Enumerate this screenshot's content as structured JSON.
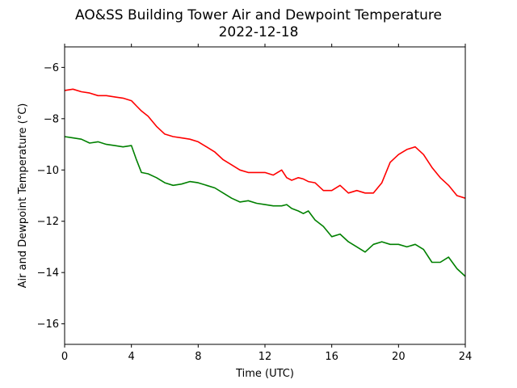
{
  "chart_data": {
    "type": "line",
    "title": "AO&SS Building Tower Air and Dewpoint Temperature",
    "subtitle": "2022-12-18",
    "xlabel": "Time (UTC)",
    "ylabel": "Air and Dewpoint Temperature (°C)",
    "xlim": [
      0,
      24
    ],
    "ylim": [
      -16.8,
      -5.2
    ],
    "xticks": [
      0,
      4,
      8,
      12,
      16,
      20,
      24
    ],
    "xtick_labels": [
      "0",
      "4",
      "8",
      "12",
      "16",
      "20",
      "24"
    ],
    "yticks": [
      -16,
      -14,
      -12,
      -10,
      -8,
      -6
    ],
    "ytick_labels": [
      "−16",
      "−14",
      "−12",
      "−10",
      "−8",
      "−6"
    ],
    "grid": false,
    "series": [
      {
        "color": "#ff0000",
        "x": [
          0,
          0.5,
          1,
          1.5,
          2,
          2.5,
          3,
          3.5,
          4,
          4.3,
          4.6,
          5,
          5.5,
          6,
          6.5,
          7,
          7.5,
          8,
          8.5,
          9,
          9.5,
          10,
          10.5,
          11,
          11.5,
          12,
          12.5,
          13,
          13.3,
          13.6,
          14,
          14.3,
          14.6,
          15,
          15.5,
          16,
          16.5,
          17,
          17.5,
          18,
          18.5,
          19,
          19.5,
          20,
          20.5,
          21,
          21.5,
          22,
          22.5,
          23,
          23.5,
          24
        ],
        "values": [
          -6.9,
          -6.85,
          -6.95,
          -7.0,
          -7.1,
          -7.1,
          -7.15,
          -7.2,
          -7.3,
          -7.5,
          -7.7,
          -7.9,
          -8.3,
          -8.6,
          -8.7,
          -8.75,
          -8.8,
          -8.9,
          -9.1,
          -9.3,
          -9.6,
          -9.8,
          -10.0,
          -10.1,
          -10.1,
          -10.1,
          -10.2,
          -10.0,
          -10.3,
          -10.4,
          -10.3,
          -10.35,
          -10.45,
          -10.5,
          -10.8,
          -10.8,
          -10.6,
          -10.9,
          -10.8,
          -10.9,
          -10.9,
          -10.5,
          -9.7,
          -9.4,
          -9.2,
          -9.1,
          -9.4,
          -9.9,
          -10.3,
          -10.6,
          -11.0,
          -11.1
        ]
      },
      {
        "color": "#008000",
        "x": [
          0,
          0.5,
          1,
          1.5,
          2,
          2.5,
          3,
          3.5,
          4,
          4.3,
          4.6,
          5,
          5.5,
          6,
          6.5,
          7,
          7.5,
          8,
          8.5,
          9,
          9.5,
          10,
          10.5,
          11,
          11.5,
          12,
          12.5,
          13,
          13.3,
          13.6,
          14,
          14.3,
          14.6,
          15,
          15.5,
          16,
          16.5,
          17,
          17.5,
          18,
          18.5,
          19,
          19.5,
          20,
          20.5,
          21,
          21.5,
          22,
          22.5,
          23,
          23.5,
          24
        ],
        "values": [
          -8.7,
          -8.75,
          -8.8,
          -8.95,
          -8.9,
          -9.0,
          -9.05,
          -9.1,
          -9.05,
          -9.6,
          -10.1,
          -10.15,
          -10.3,
          -10.5,
          -10.6,
          -10.55,
          -10.45,
          -10.5,
          -10.6,
          -10.7,
          -10.9,
          -11.1,
          -11.25,
          -11.2,
          -11.3,
          -11.35,
          -11.4,
          -11.4,
          -11.35,
          -11.5,
          -11.6,
          -11.7,
          -11.6,
          -11.95,
          -12.2,
          -12.6,
          -12.5,
          -12.8,
          -13.0,
          -13.2,
          -12.9,
          -12.8,
          -12.9,
          -12.9,
          -13.0,
          -12.9,
          -13.1,
          -13.6,
          -13.6,
          -13.4,
          -13.85,
          -14.15
        ]
      }
    ]
  }
}
